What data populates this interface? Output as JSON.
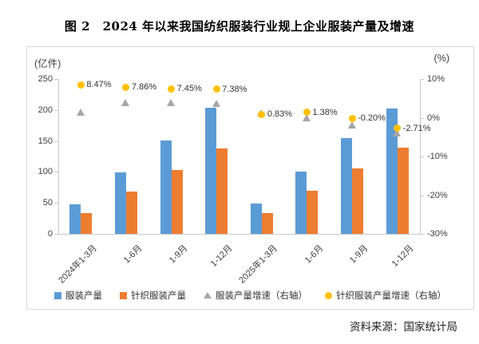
{
  "page": {
    "title": "图 2　2024 年以来我国纺织服装行业规上企业服装产量及增速",
    "source": "资料来源：国家统计局"
  },
  "chart_data": {
    "type": "bar",
    "subtype": "grouped bars with two scatter-marker series on secondary axis",
    "title": "图 2　2024 年以来我国纺织服装行业规上企业服装产量及增速",
    "categories": [
      "2024年1-3月",
      "1-6月",
      "1-9月",
      "1-12月",
      "2025年1-3月",
      "1-6月",
      "1-9月",
      "1-12月"
    ],
    "series": [
      {
        "name": "服装产量",
        "type": "bar",
        "axis": "left",
        "color": "#5B9BD5",
        "values": [
          48,
          99,
          151,
          204,
          49,
          101,
          154,
          202
        ]
      },
      {
        "name": "针织服装产量",
        "type": "bar",
        "axis": "left",
        "color": "#ED7D31",
        "values": [
          33,
          68,
          103,
          138,
          33,
          69,
          106,
          139
        ]
      },
      {
        "name": "服装产量增速（右轴）",
        "type": "scatter",
        "marker": "triangle",
        "axis": "right",
        "color": "#A6A6A6",
        "values": [
          1.4,
          3.9,
          3.9,
          3.8,
          1.3,
          0.0,
          -1.9,
          -4.0
        ],
        "data_labels": null
      },
      {
        "name": "针织服装产量增速（右轴）",
        "type": "scatter",
        "marker": "circle",
        "axis": "right",
        "color": "#FFC000",
        "values": [
          8.47,
          7.86,
          7.45,
          7.38,
          0.83,
          1.38,
          -0.2,
          -2.71
        ],
        "data_labels": [
          "8.47%",
          "7.86%",
          "7.45%",
          "7.38%",
          "0.83%",
          "1.38%",
          "-0.20%",
          "-2.71%"
        ]
      }
    ],
    "left_axis": {
      "unit_label": "(亿件)",
      "min": 0,
      "max": 250,
      "step": 50,
      "tick_labels": [
        "250",
        "200",
        "150",
        "100",
        "50",
        "0"
      ],
      "tick_values": [
        250,
        200,
        150,
        100,
        50,
        0
      ]
    },
    "right_axis": {
      "unit_label": "(%)",
      "min": -30,
      "max": 10,
      "step": 10,
      "tick_labels": [
        "10%",
        "0%",
        "-10%",
        "-20%",
        "-30%"
      ],
      "tick_values": [
        10,
        0,
        -10,
        -20,
        -30
      ]
    },
    "gridlines": false,
    "legend_position": "bottom",
    "legend": [
      {
        "label": "服装产量",
        "marker": "square",
        "color": "#5B9BD5"
      },
      {
        "label": "针织服装产量",
        "marker": "square",
        "color": "#ED7D31"
      },
      {
        "label": "服装产量增速（右轴）",
        "marker": "triangle",
        "color": "#A6A6A6"
      },
      {
        "label": "针织服装产量增速（右轴）",
        "marker": "circle",
        "color": "#FFC000"
      }
    ],
    "source": "资料来源：国家统计局"
  }
}
